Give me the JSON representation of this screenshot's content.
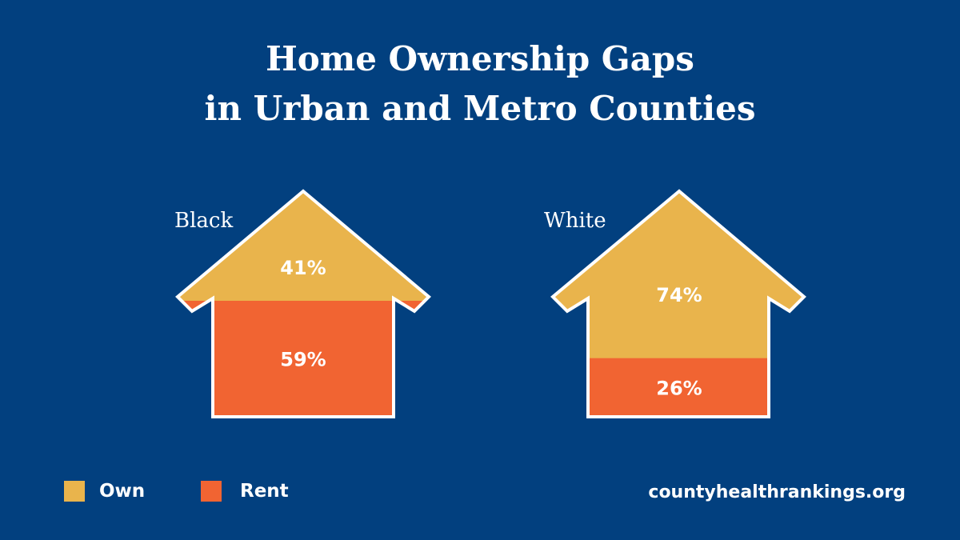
{
  "title_line1": "Home Ownership Gaps",
  "title_line2": "in Urban and Metro Counties",
  "source": "countyhealthrankings.org",
  "colors": {
    "background": "#02407f",
    "own": "#e9b44c",
    "rent": "#f16432",
    "outline": "#ffffff"
  },
  "legend": [
    {
      "label": "Own",
      "color": "#e9b44c"
    },
    {
      "label": "Rent",
      "color": "#f16432"
    }
  ],
  "chart_data": {
    "type": "bar",
    "stacked": true,
    "categories": [
      "Black",
      "White"
    ],
    "series": [
      {
        "name": "Own",
        "values": [
          41,
          74
        ],
        "labels": [
          "41%",
          "74%"
        ]
      },
      {
        "name": "Rent",
        "values": [
          59,
          26
        ],
        "labels": [
          "59%",
          "26%"
        ]
      }
    ],
    "unit": "%",
    "ylim": [
      0,
      100
    ],
    "grid": false,
    "legend_position": "bottom-left"
  }
}
